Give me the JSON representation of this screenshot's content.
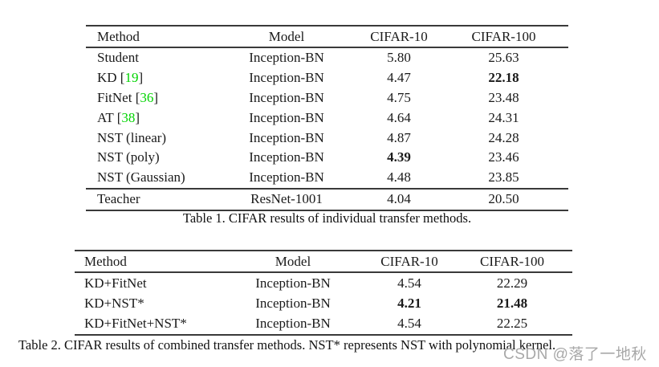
{
  "colors": {
    "citation_green": "#00d400",
    "rule_color": "#3a3a3a",
    "watermark_gray": "#a8a8a8"
  },
  "table1": {
    "headers": {
      "method": "Method",
      "model": "Model",
      "cifar10": "CIFAR-10",
      "cifar100": "CIFAR-100"
    },
    "rows": [
      {
        "method_pre": "Student",
        "model": "Inception-BN",
        "cifar10": "5.80",
        "cifar100": "25.63"
      },
      {
        "method_pre": "KD [",
        "method_ref": "19",
        "method_post": "]",
        "model": "Inception-BN",
        "cifar10": "4.47",
        "cifar100": "22.18"
      },
      {
        "method_pre": "FitNet [",
        "method_ref": "36",
        "method_post": "]",
        "model": "Inception-BN",
        "cifar10": "4.75",
        "cifar100": "23.48"
      },
      {
        "method_pre": "AT [",
        "method_ref": "38",
        "method_post": "]",
        "model": "Inception-BN",
        "cifar10": "4.64",
        "cifar100": "24.31"
      },
      {
        "method_pre": "NST (linear)",
        "model": "Inception-BN",
        "cifar10": "4.87",
        "cifar100": "24.28"
      },
      {
        "method_pre": "NST (poly)",
        "model": "Inception-BN",
        "cifar10": "4.39",
        "cifar100": "23.46"
      },
      {
        "method_pre": "NST (Gaussian)",
        "model": "Inception-BN",
        "cifar10": "4.48",
        "cifar100": "23.85"
      }
    ],
    "footer_row": {
      "method_pre": "Teacher",
      "model": "ResNet-1001",
      "cifar10": "4.04",
      "cifar100": "20.50"
    },
    "caption": "Table 1. CIFAR results of individual transfer methods."
  },
  "table2": {
    "headers": {
      "method": "Method",
      "model": "Model",
      "cifar10": "CIFAR-10",
      "cifar100": "CIFAR-100"
    },
    "rows": [
      {
        "method_pre": "KD+FitNet",
        "model": "Inception-BN",
        "cifar10": "4.54",
        "cifar100": "22.29"
      },
      {
        "method_pre": "KD+NST*",
        "model": "Inception-BN",
        "cifar10": "4.21",
        "cifar100": "21.48"
      },
      {
        "method_pre": "KD+FitNet+NST*",
        "model": "Inception-BN",
        "cifar10": "4.54",
        "cifar100": "22.25"
      }
    ],
    "caption": "Table 2. CIFAR results of combined transfer methods. NST* represents NST with polynomial kernel."
  },
  "watermark": "CSDN @落了一地秋"
}
